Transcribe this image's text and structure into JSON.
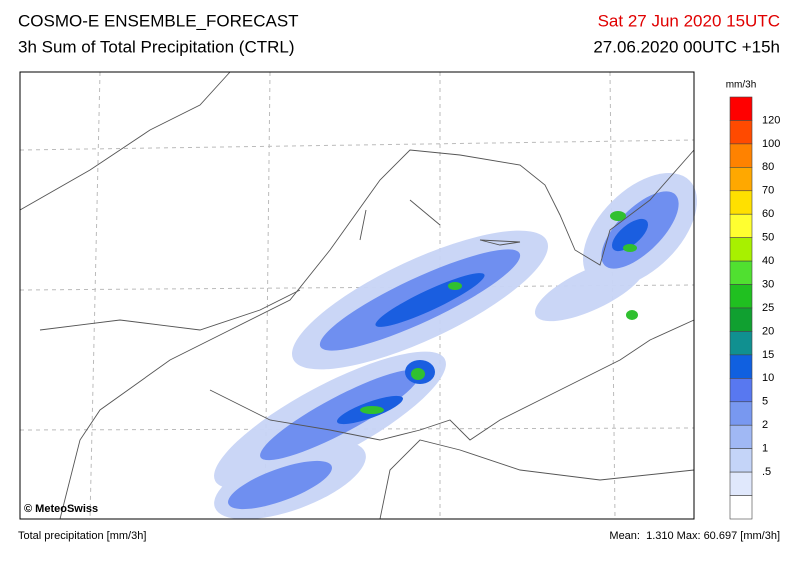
{
  "header": {
    "title": "COSMO-E ENSEMBLE_FORECAST",
    "subtitle": "3h Sum of Total Precipitation (CTRL)",
    "valid_time": "Sat 27 Jun 2020 15UTC",
    "run_time": "27.06.2020 00UTC +15h"
  },
  "legend": {
    "unit": "mm/3h",
    "labels": [
      "120",
      "100",
      "80",
      "70",
      "60",
      "50",
      "40",
      "30",
      "25",
      "20",
      "15",
      "10",
      "5",
      "2",
      "1",
      ".5"
    ],
    "colors": [
      "#ff0000",
      "#ff4a00",
      "#ff8200",
      "#ffa800",
      "#ffe000",
      "#ffff30",
      "#a8f000",
      "#50e030",
      "#20c020",
      "#10a030",
      "#109090",
      "#1060e0",
      "#5878f0",
      "#7898f0",
      "#a0b8f4",
      "#c4d4f8",
      "#e0e8fc",
      "#ffffff"
    ]
  },
  "map": {
    "copyright": "© MeteoSwiss"
  },
  "footer": {
    "left": "Total precipitation [mm/3h]",
    "right": "Mean:  1.310 Max: 60.697 [mm/3h]"
  }
}
